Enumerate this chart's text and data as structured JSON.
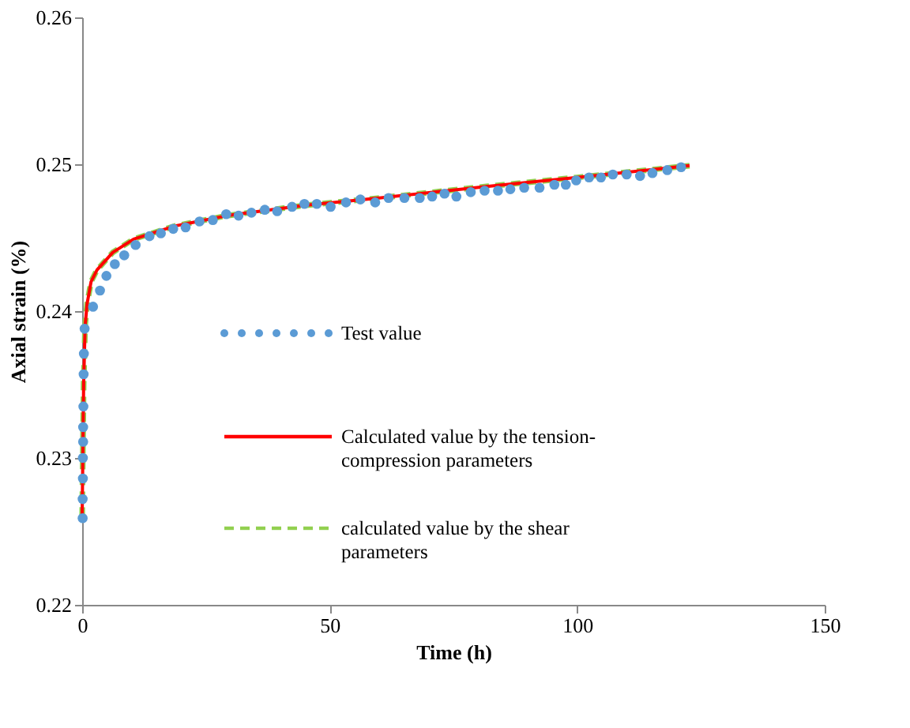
{
  "chart_data": {
    "type": "line",
    "xlabel": "Time (h)",
    "ylabel": "Axial strain (%)",
    "xlim": [
      0,
      150
    ],
    "xticks": [
      0,
      50,
      100,
      150
    ],
    "ylim": [
      0.22,
      0.26
    ],
    "yticks": [
      0.22,
      0.23,
      0.24,
      0.25,
      0.26
    ],
    "grid": false,
    "legend": "left",
    "series": [
      {
        "name": "Test value",
        "type": "scatter",
        "marker": "circle",
        "color": "#5b9bd5",
        "x": [
          0.1,
          0.1,
          0.15,
          0.15,
          0.2,
          0.2,
          0.25,
          0.3,
          0.35,
          0.5,
          2.2,
          3.6,
          4.9,
          6.6,
          8.5,
          10.8,
          13.6,
          15.9,
          18.4,
          20.9,
          23.7,
          26.4,
          29.1,
          31.6,
          34.2,
          36.9,
          39.4,
          42.4,
          44.9,
          47.4,
          50.2,
          53.3,
          56.2,
          59.2,
          61.9,
          65.1,
          68.2,
          70.7,
          73.2,
          75.6,
          78.5,
          81.3,
          84.0,
          86.5,
          89.3,
          92.4,
          95.4,
          97.7,
          99.8,
          102.4,
          104.8,
          107.2,
          110.0,
          112.7,
          115.2,
          118.2,
          121.0
        ],
        "values": [
          0.2259,
          0.2272,
          0.2286,
          0.23,
          0.2311,
          0.2321,
          0.2335,
          0.2357,
          0.2371,
          0.2388,
          0.2403,
          0.2414,
          0.2424,
          0.2432,
          0.2438,
          0.2445,
          0.2451,
          0.2453,
          0.2456,
          0.2457,
          0.2461,
          0.2462,
          0.2466,
          0.2465,
          0.2467,
          0.2469,
          0.2468,
          0.2471,
          0.2473,
          0.2473,
          0.2471,
          0.2474,
          0.2476,
          0.2474,
          0.2477,
          0.2477,
          0.2477,
          0.2478,
          0.248,
          0.2478,
          0.2481,
          0.2482,
          0.2482,
          0.2483,
          0.2484,
          0.2484,
          0.2486,
          0.2486,
          0.2489,
          0.2491,
          0.2491,
          0.2493,
          0.2493,
          0.2492,
          0.2494,
          0.2496,
          0.2498
        ]
      },
      {
        "name": "Calculated value by the tension-compression parameters",
        "type": "line",
        "line_style": "solid",
        "color": "#ff0000",
        "x": [
          0,
          0.3,
          0.6,
          1.0,
          1.8,
          3.0,
          6.2,
          10.4,
          18.8,
          29.3,
          45,
          60,
          82,
          100,
          122.7
        ],
        "values": [
          0.226,
          0.235,
          0.239,
          0.2405,
          0.242,
          0.2428,
          0.244,
          0.2449,
          0.2458,
          0.2465,
          0.2472,
          0.2477,
          0.2485,
          0.2491,
          0.2499
        ]
      },
      {
        "name": "calculated value by the shear parameters",
        "type": "line",
        "line_style": "dashed",
        "color": "#92d050",
        "x": [
          0,
          0.3,
          0.6,
          1.0,
          1.8,
          3.0,
          6.2,
          10.4,
          18.8,
          29.3,
          45,
          60,
          82,
          100,
          122.7
        ],
        "values": [
          0.226,
          0.235,
          0.239,
          0.2405,
          0.242,
          0.2428,
          0.244,
          0.2449,
          0.2458,
          0.2465,
          0.2472,
          0.2477,
          0.2485,
          0.2491,
          0.2499
        ]
      }
    ]
  }
}
